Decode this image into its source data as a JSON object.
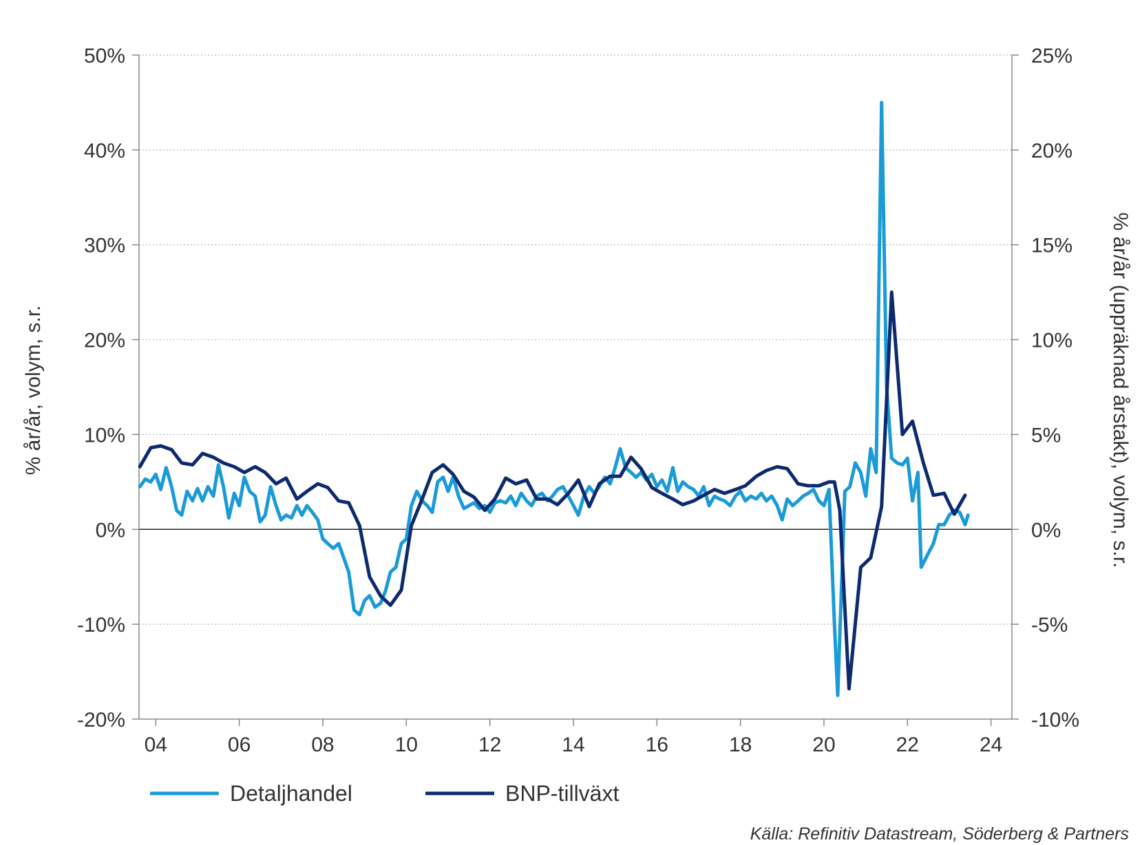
{
  "chart_data": {
    "type": "line",
    "title": "",
    "source_note": "Källa: Refinitiv Datastream, Söderberg & Partners",
    "x_axis": {
      "min": 2003.6,
      "max": 2024.5,
      "ticks": [
        2004,
        2006,
        2008,
        2010,
        2012,
        2014,
        2016,
        2018,
        2020,
        2022,
        2024
      ],
      "tick_labels": [
        "04",
        "06",
        "08",
        "10",
        "12",
        "14",
        "16",
        "18",
        "20",
        "22",
        "24"
      ]
    },
    "y_left": {
      "label": "% år/år, volym, s.r.",
      "min": -20,
      "max": 50,
      "ticks": [
        -20,
        -10,
        0,
        10,
        20,
        30,
        40,
        50
      ],
      "tick_labels": [
        "-20%",
        "-10%",
        "0%",
        "10%",
        "20%",
        "30%",
        "40%",
        "50%"
      ]
    },
    "y_right": {
      "label": "% år/år (uppräknad årstakt), volym, s.r.",
      "min": -10,
      "max": 25,
      "ticks": [
        -10,
        -5,
        0,
        5,
        10,
        15,
        20,
        25
      ],
      "tick_labels": [
        "-10%",
        "-5%",
        "0%",
        "5%",
        "10%",
        "15%",
        "20%",
        "25%"
      ]
    },
    "grid": "horizontal dotted",
    "legend_position": "bottom-left",
    "series": [
      {
        "name": "Detaljhandel",
        "axis": "left",
        "color": "#1a9bd7",
        "points": [
          [
            2003.62,
            4.5
          ],
          [
            2003.75,
            5.3
          ],
          [
            2003.88,
            5.0
          ],
          [
            2004.0,
            5.8
          ],
          [
            2004.12,
            4.2
          ],
          [
            2004.25,
            6.5
          ],
          [
            2004.38,
            4.5
          ],
          [
            2004.5,
            2.0
          ],
          [
            2004.62,
            1.5
          ],
          [
            2004.75,
            4.0
          ],
          [
            2004.88,
            3.0
          ],
          [
            2005.0,
            4.3
          ],
          [
            2005.12,
            3.0
          ],
          [
            2005.25,
            4.5
          ],
          [
            2005.38,
            3.5
          ],
          [
            2005.5,
            6.8
          ],
          [
            2005.62,
            4.5
          ],
          [
            2005.75,
            1.2
          ],
          [
            2005.88,
            3.8
          ],
          [
            2006.0,
            2.5
          ],
          [
            2006.12,
            5.5
          ],
          [
            2006.25,
            4.0
          ],
          [
            2006.38,
            3.5
          ],
          [
            2006.5,
            0.8
          ],
          [
            2006.62,
            1.5
          ],
          [
            2006.75,
            4.5
          ],
          [
            2006.88,
            2.5
          ],
          [
            2007.0,
            1.0
          ],
          [
            2007.12,
            1.5
          ],
          [
            2007.25,
            1.2
          ],
          [
            2007.38,
            2.5
          ],
          [
            2007.5,
            1.5
          ],
          [
            2007.62,
            2.5
          ],
          [
            2007.75,
            1.8
          ],
          [
            2007.88,
            1.0
          ],
          [
            2008.0,
            -1.0
          ],
          [
            2008.12,
            -1.5
          ],
          [
            2008.25,
            -2.0
          ],
          [
            2008.38,
            -1.5
          ],
          [
            2008.5,
            -3.0
          ],
          [
            2008.62,
            -4.5
          ],
          [
            2008.75,
            -8.5
          ],
          [
            2008.88,
            -9.0
          ],
          [
            2009.0,
            -7.5
          ],
          [
            2009.12,
            -7.0
          ],
          [
            2009.25,
            -8.2
          ],
          [
            2009.38,
            -7.8
          ],
          [
            2009.5,
            -6.5
          ],
          [
            2009.62,
            -4.5
          ],
          [
            2009.75,
            -4.0
          ],
          [
            2009.88,
            -1.5
          ],
          [
            2010.0,
            -1.0
          ],
          [
            2010.12,
            2.5
          ],
          [
            2010.25,
            4.0
          ],
          [
            2010.38,
            3.0
          ],
          [
            2010.5,
            2.5
          ],
          [
            2010.62,
            1.8
          ],
          [
            2010.75,
            5.0
          ],
          [
            2010.88,
            5.5
          ],
          [
            2011.0,
            4.0
          ],
          [
            2011.12,
            5.5
          ],
          [
            2011.25,
            3.5
          ],
          [
            2011.38,
            2.2
          ],
          [
            2011.5,
            2.5
          ],
          [
            2011.62,
            2.8
          ],
          [
            2011.75,
            2.2
          ],
          [
            2011.88,
            2.5
          ],
          [
            2012.0,
            1.8
          ],
          [
            2012.12,
            2.8
          ],
          [
            2012.25,
            3.0
          ],
          [
            2012.38,
            2.8
          ],
          [
            2012.5,
            3.5
          ],
          [
            2012.62,
            2.5
          ],
          [
            2012.75,
            3.8
          ],
          [
            2012.88,
            3.0
          ],
          [
            2013.0,
            2.5
          ],
          [
            2013.12,
            3.5
          ],
          [
            2013.25,
            3.8
          ],
          [
            2013.38,
            3.0
          ],
          [
            2013.5,
            3.5
          ],
          [
            2013.62,
            4.2
          ],
          [
            2013.75,
            4.5
          ],
          [
            2013.88,
            3.5
          ],
          [
            2014.0,
            2.5
          ],
          [
            2014.12,
            1.5
          ],
          [
            2014.25,
            3.5
          ],
          [
            2014.38,
            4.5
          ],
          [
            2014.5,
            3.8
          ],
          [
            2014.62,
            4.5
          ],
          [
            2014.75,
            5.5
          ],
          [
            2014.88,
            4.8
          ],
          [
            2015.0,
            6.5
          ],
          [
            2015.12,
            8.5
          ],
          [
            2015.25,
            6.5
          ],
          [
            2015.38,
            6.0
          ],
          [
            2015.5,
            5.5
          ],
          [
            2015.62,
            6.0
          ],
          [
            2015.75,
            5.2
          ],
          [
            2015.88,
            5.8
          ],
          [
            2016.0,
            4.5
          ],
          [
            2016.12,
            5.2
          ],
          [
            2016.25,
            4.0
          ],
          [
            2016.38,
            6.5
          ],
          [
            2016.5,
            4.0
          ],
          [
            2016.62,
            5.0
          ],
          [
            2016.75,
            4.5
          ],
          [
            2016.88,
            4.2
          ],
          [
            2017.0,
            3.5
          ],
          [
            2017.12,
            4.5
          ],
          [
            2017.25,
            2.5
          ],
          [
            2017.38,
            3.5
          ],
          [
            2017.5,
            3.2
          ],
          [
            2017.62,
            3.0
          ],
          [
            2017.75,
            2.5
          ],
          [
            2017.88,
            3.5
          ],
          [
            2018.0,
            4.0
          ],
          [
            2018.12,
            3.0
          ],
          [
            2018.25,
            3.5
          ],
          [
            2018.38,
            3.2
          ],
          [
            2018.5,
            3.8
          ],
          [
            2018.62,
            3.0
          ],
          [
            2018.75,
            3.5
          ],
          [
            2018.88,
            2.5
          ],
          [
            2019.0,
            1.0
          ],
          [
            2019.12,
            3.2
          ],
          [
            2019.25,
            2.5
          ],
          [
            2019.38,
            3.0
          ],
          [
            2019.5,
            3.5
          ],
          [
            2019.62,
            3.8
          ],
          [
            2019.75,
            4.2
          ],
          [
            2019.88,
            3.0
          ],
          [
            2020.0,
            2.5
          ],
          [
            2020.12,
            4.2
          ],
          [
            2020.25,
            -10.0
          ],
          [
            2020.33,
            -17.5
          ],
          [
            2020.5,
            4.0
          ],
          [
            2020.62,
            4.5
          ],
          [
            2020.75,
            7.0
          ],
          [
            2020.88,
            6.0
          ],
          [
            2021.0,
            3.5
          ],
          [
            2021.12,
            8.5
          ],
          [
            2021.25,
            6.0
          ],
          [
            2021.38,
            45.0
          ],
          [
            2021.5,
            15.0
          ],
          [
            2021.62,
            7.5
          ],
          [
            2021.75,
            7.0
          ],
          [
            2021.88,
            6.8
          ],
          [
            2022.0,
            7.5
          ],
          [
            2022.12,
            3.0
          ],
          [
            2022.25,
            6.0
          ],
          [
            2022.33,
            -4.0
          ],
          [
            2022.5,
            -2.5
          ],
          [
            2022.62,
            -1.5
          ],
          [
            2022.75,
            0.5
          ],
          [
            2022.88,
            0.5
          ],
          [
            2023.0,
            1.5
          ],
          [
            2023.12,
            2.0
          ],
          [
            2023.25,
            1.8
          ],
          [
            2023.38,
            0.5
          ],
          [
            2023.45,
            1.5
          ]
        ]
      },
      {
        "name": "BNP-tillväxt",
        "axis": "right",
        "color": "#0d2a6e",
        "points": [
          [
            2003.62,
            3.3
          ],
          [
            2003.88,
            4.3
          ],
          [
            2004.12,
            4.4
          ],
          [
            2004.38,
            4.2
          ],
          [
            2004.62,
            3.5
          ],
          [
            2004.88,
            3.4
          ],
          [
            2005.12,
            4.0
          ],
          [
            2005.38,
            3.8
          ],
          [
            2005.62,
            3.5
          ],
          [
            2005.88,
            3.3
          ],
          [
            2006.12,
            3.0
          ],
          [
            2006.38,
            3.3
          ],
          [
            2006.62,
            3.0
          ],
          [
            2006.88,
            2.4
          ],
          [
            2007.12,
            2.7
          ],
          [
            2007.38,
            1.6
          ],
          [
            2007.62,
            2.0
          ],
          [
            2007.88,
            2.4
          ],
          [
            2008.12,
            2.2
          ],
          [
            2008.38,
            1.5
          ],
          [
            2008.62,
            1.4
          ],
          [
            2008.88,
            0.2
          ],
          [
            2009.12,
            -2.5
          ],
          [
            2009.38,
            -3.5
          ],
          [
            2009.62,
            -4.0
          ],
          [
            2009.88,
            -3.2
          ],
          [
            2010.12,
            0.2
          ],
          [
            2010.38,
            1.6
          ],
          [
            2010.62,
            3.0
          ],
          [
            2010.88,
            3.4
          ],
          [
            2011.12,
            2.9
          ],
          [
            2011.38,
            2.0
          ],
          [
            2011.62,
            1.7
          ],
          [
            2011.88,
            1.0
          ],
          [
            2012.12,
            1.6
          ],
          [
            2012.38,
            2.7
          ],
          [
            2012.62,
            2.4
          ],
          [
            2012.88,
            2.6
          ],
          [
            2013.12,
            1.6
          ],
          [
            2013.38,
            1.6
          ],
          [
            2013.62,
            1.3
          ],
          [
            2013.88,
            1.9
          ],
          [
            2014.12,
            2.6
          ],
          [
            2014.38,
            1.2
          ],
          [
            2014.62,
            2.4
          ],
          [
            2014.88,
            2.8
          ],
          [
            2015.12,
            2.8
          ],
          [
            2015.38,
            3.8
          ],
          [
            2015.62,
            3.2
          ],
          [
            2015.88,
            2.2
          ],
          [
            2016.12,
            1.9
          ],
          [
            2016.38,
            1.6
          ],
          [
            2016.62,
            1.3
          ],
          [
            2016.88,
            1.5
          ],
          [
            2017.12,
            1.8
          ],
          [
            2017.38,
            2.1
          ],
          [
            2017.62,
            1.9
          ],
          [
            2017.88,
            2.1
          ],
          [
            2018.12,
            2.3
          ],
          [
            2018.38,
            2.8
          ],
          [
            2018.62,
            3.1
          ],
          [
            2018.88,
            3.3
          ],
          [
            2019.12,
            3.2
          ],
          [
            2019.38,
            2.4
          ],
          [
            2019.62,
            2.3
          ],
          [
            2019.88,
            2.3
          ],
          [
            2020.12,
            2.5
          ],
          [
            2020.25,
            2.5
          ],
          [
            2020.38,
            1.0
          ],
          [
            2020.6,
            -8.4
          ],
          [
            2020.88,
            -2.0
          ],
          [
            2021.12,
            -1.5
          ],
          [
            2021.38,
            1.2
          ],
          [
            2021.62,
            12.5
          ],
          [
            2021.88,
            5.0
          ],
          [
            2022.12,
            5.7
          ],
          [
            2022.38,
            3.5
          ],
          [
            2022.62,
            1.8
          ],
          [
            2022.88,
            1.9
          ],
          [
            2023.12,
            0.8
          ],
          [
            2023.38,
            1.8
          ]
        ]
      }
    ]
  }
}
